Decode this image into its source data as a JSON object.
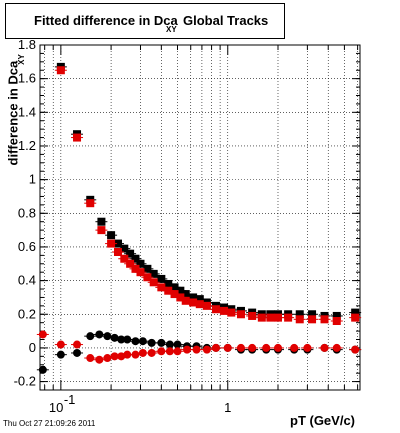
{
  "title": {
    "main": "Fitted difference in Dca",
    "sub": "XY",
    "tail": "Global Tracks"
  },
  "footer": "Thu Oct 27 21:09:26 2011",
  "chart_data": {
    "type": "scatter",
    "title": "Fitted difference in Dca XY Global Tracks",
    "xlabel": "pT (GeV/c)",
    "ylabel": "difference in Dca",
    "ylabel_sub": "XY",
    "xscale": "log",
    "xlim": [
      0.075,
      6.2
    ],
    "ylim": [
      -0.25,
      1.8
    ],
    "grid": true,
    "xticks": [
      0.1,
      1
    ],
    "xtick_labels": [
      "10^-1",
      "1"
    ],
    "yticks": [
      -0.2,
      0,
      0.2,
      0.4,
      0.6,
      0.8,
      1,
      1.2,
      1.4,
      1.6,
      1.8
    ],
    "ytick_labels": [
      "-0.2",
      "0",
      "0.2",
      "0.4",
      "0.6",
      "0.8",
      "1",
      "1.2",
      "1.4",
      "1.6",
      "1.8"
    ],
    "series": [
      {
        "color": "#000000",
        "marker": "square",
        "x": [
          0.1,
          0.125,
          0.15,
          0.175,
          0.2,
          0.22,
          0.24,
          0.26,
          0.28,
          0.3,
          0.33,
          0.36,
          0.4,
          0.44,
          0.48,
          0.52,
          0.56,
          0.62,
          0.68,
          0.75,
          0.85,
          0.95,
          1.05,
          1.2,
          1.4,
          1.6,
          1.8,
          2.0,
          2.3,
          2.7,
          3.2,
          3.8,
          4.5,
          5.8
        ],
        "y": [
          1.67,
          1.27,
          0.88,
          0.75,
          0.67,
          0.62,
          0.59,
          0.56,
          0.53,
          0.5,
          0.47,
          0.44,
          0.41,
          0.38,
          0.36,
          0.34,
          0.32,
          0.3,
          0.29,
          0.27,
          0.25,
          0.24,
          0.23,
          0.22,
          0.21,
          0.2,
          0.2,
          0.2,
          0.2,
          0.2,
          0.2,
          0.19,
          0.19,
          0.21
        ]
      },
      {
        "color": "#e00000",
        "marker": "square",
        "x": [
          0.1,
          0.125,
          0.15,
          0.175,
          0.2,
          0.22,
          0.24,
          0.26,
          0.28,
          0.3,
          0.33,
          0.36,
          0.4,
          0.44,
          0.48,
          0.52,
          0.56,
          0.62,
          0.68,
          0.75,
          0.85,
          0.95,
          1.05,
          1.2,
          1.4,
          1.6,
          1.8,
          2.0,
          2.3,
          2.7,
          3.2,
          3.8,
          4.5,
          5.8
        ],
        "y": [
          1.65,
          1.25,
          0.86,
          0.7,
          0.62,
          0.57,
          0.53,
          0.5,
          0.47,
          0.45,
          0.42,
          0.39,
          0.36,
          0.34,
          0.32,
          0.3,
          0.28,
          0.27,
          0.26,
          0.25,
          0.23,
          0.22,
          0.21,
          0.2,
          0.19,
          0.18,
          0.18,
          0.18,
          0.18,
          0.17,
          0.17,
          0.17,
          0.16,
          0.18
        ]
      },
      {
        "color": "#000000",
        "marker": "circle",
        "x": [
          0.078,
          0.1,
          0.125,
          0.15,
          0.17,
          0.19,
          0.21,
          0.23,
          0.25,
          0.28,
          0.31,
          0.35,
          0.4,
          0.45,
          0.5,
          0.57,
          0.65,
          0.75,
          0.85,
          1.0,
          1.2,
          1.4,
          1.7,
          2.0,
          2.5,
          3.0,
          3.8,
          4.5,
          5.8
        ],
        "y": [
          -0.13,
          -0.04,
          -0.03,
          0.07,
          0.08,
          0.07,
          0.06,
          0.05,
          0.05,
          0.04,
          0.04,
          0.03,
          0.03,
          0.02,
          0.02,
          0.01,
          0.01,
          0.0,
          0.0,
          0.0,
          -0.01,
          -0.01,
          -0.01,
          -0.01,
          -0.01,
          -0.01,
          0.0,
          -0.01,
          -0.01
        ]
      },
      {
        "color": "#e00000",
        "marker": "circle",
        "x": [
          0.078,
          0.1,
          0.125,
          0.15,
          0.17,
          0.19,
          0.21,
          0.23,
          0.25,
          0.28,
          0.31,
          0.35,
          0.4,
          0.45,
          0.5,
          0.57,
          0.65,
          0.75,
          0.85,
          1.0,
          1.2,
          1.4,
          1.7,
          2.0,
          2.5,
          3.0,
          3.8,
          4.5,
          5.8
        ],
        "y": [
          0.08,
          0.02,
          0.02,
          -0.06,
          -0.07,
          -0.06,
          -0.05,
          -0.05,
          -0.04,
          -0.04,
          -0.03,
          -0.03,
          -0.02,
          -0.02,
          -0.02,
          -0.01,
          -0.01,
          -0.01,
          0.0,
          0.0,
          0.0,
          0.0,
          0.0,
          0.0,
          0.0,
          0.0,
          0.0,
          0.0,
          -0.01
        ]
      }
    ]
  }
}
